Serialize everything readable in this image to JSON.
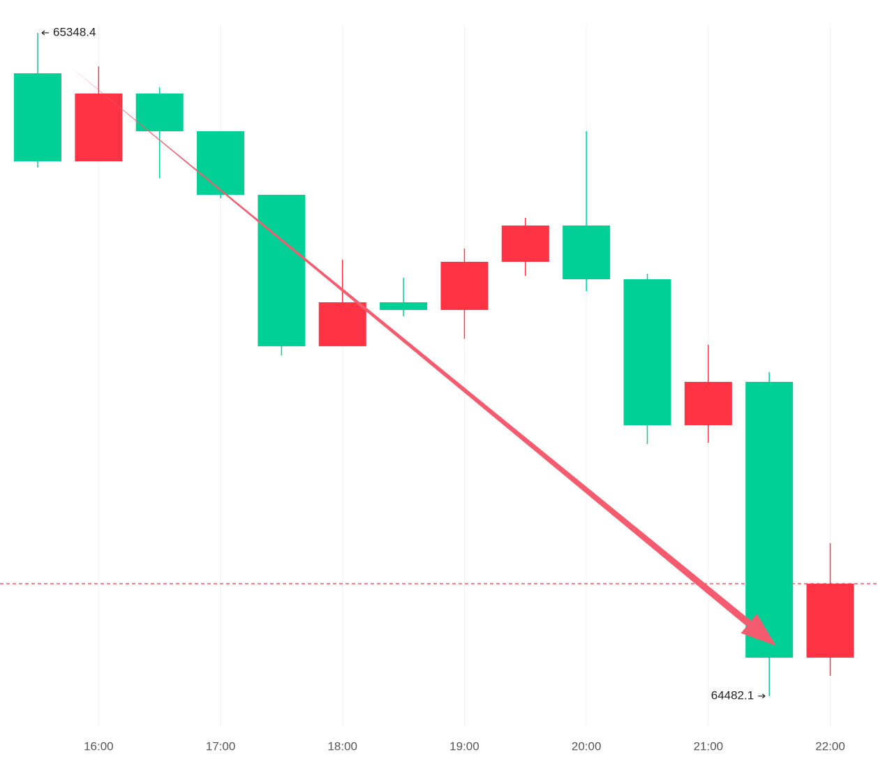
{
  "chart_data": {
    "type": "candlestick",
    "categories": [
      null,
      "16:00",
      null,
      "17:00",
      null,
      "18:00",
      null,
      "19:00",
      null,
      "20:00",
      null,
      "21:00",
      null,
      "22:00"
    ],
    "open": [
      65295.5,
      65180.6,
      65269.1,
      65219.8,
      65136.8,
      64939.0,
      64996.4,
      64986.4,
      65049.3,
      65096.7,
      65026.5,
      64835.9,
      64892.5,
      64532.3
    ],
    "high": [
      65348.4,
      65304.6,
      65277.3,
      65219.8,
      65136.8,
      65052.0,
      65028.4,
      65066.6,
      65106.7,
      65219.8,
      65033.8,
      64940.8,
      64905.2,
      64681.8
    ],
    "low": [
      65172.4,
      65180.6,
      65158.7,
      65132.3,
      64927.1,
      64939.0,
      64978.2,
      64949.0,
      65031.1,
      65011.0,
      64811.3,
      64813.1,
      64482.1,
      64508.5
    ],
    "close": [
      65180.6,
      65269.1,
      65219.8,
      65136.8,
      64939.0,
      64996.4,
      64986.4,
      65049.3,
      65096.7,
      65026.5,
      64835.9,
      64892.5,
      64532.3,
      64628.9
    ],
    "up_color": "#ff3344",
    "down_color": "#00d095",
    "ylim": [
      64450,
      65400
    ],
    "grid": true,
    "last_price_line": true
  }
}
